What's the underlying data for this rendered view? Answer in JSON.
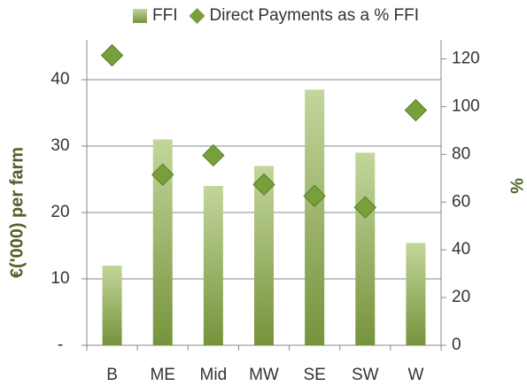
{
  "chart_data": {
    "type": "bar",
    "categories": [
      "B",
      "ME",
      "Mid",
      "MW",
      "SE",
      "SW",
      "W"
    ],
    "series": [
      {
        "name": "FFI",
        "type": "bar",
        "color": "#9bbb59",
        "values": [
          12,
          31,
          24,
          27,
          38.5,
          29,
          15.4
        ]
      },
      {
        "name": "Direct Payments as a % FFI",
        "type": "scatter",
        "axis": "y2",
        "color": "#77a03a",
        "values": [
          121.5,
          71.5,
          79.6,
          67.4,
          62.6,
          57.8,
          98.5
        ]
      }
    ],
    "ylabel": "€('000) per farm",
    "y2label": "%",
    "ylim": [
      0,
      46
    ],
    "yticks": [
      {
        "value": 0,
        "label": "-"
      },
      10,
      20,
      30,
      40
    ],
    "y2lim": [
      0,
      128
    ],
    "y2ticks": [
      0,
      20,
      40,
      60,
      80,
      100,
      120
    ],
    "grid": true,
    "legend": "top"
  }
}
